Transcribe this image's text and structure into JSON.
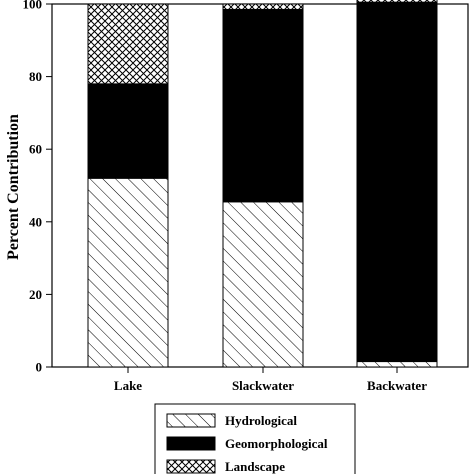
{
  "chart_data": {
    "type": "bar",
    "stacked": true,
    "categories": [
      "Lake",
      "Slackwater",
      "Backwater"
    ],
    "series": [
      {
        "name": "Hydrological",
        "values": [
          52,
          45.5,
          1.5
        ],
        "pattern": "diagonal-hatch"
      },
      {
        "name": "Geomorphological",
        "values": [
          26,
          53,
          99
        ],
        "pattern": "solid-black"
      },
      {
        "name": "Landscape",
        "values": [
          22,
          1.5,
          1.5
        ],
        "pattern": "cross-hatch"
      }
    ],
    "title": "",
    "xlabel": "",
    "ylabel": "Percent Contribution",
    "ylim": [
      0,
      100
    ],
    "yticks": [
      0,
      20,
      40,
      60,
      80,
      100
    ],
    "grid": false,
    "legend_position": "bottom-center"
  }
}
